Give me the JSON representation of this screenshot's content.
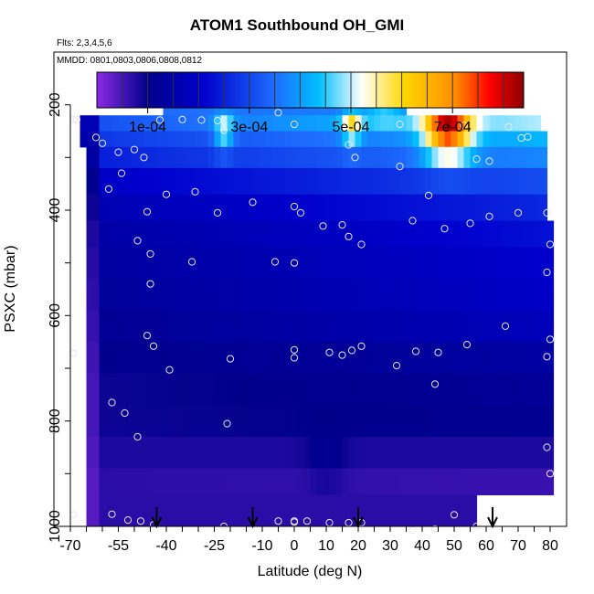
{
  "chart_data": {
    "type": "heatmap",
    "title": "ATOM1 Southbound OH_GMI",
    "flights_note": "Flts: 2,3,4,5,6",
    "dates_note": "MMDD: 0801,0803,0806,0808,0812",
    "xlabel": "Latitude (deg N)",
    "ylabel": "PSXC (mbar)",
    "xlim": [
      -70,
      80
    ],
    "ylim": [
      1000,
      100
    ],
    "x_ticks": [
      -70,
      -55,
      -40,
      -25,
      -10,
      0,
      10,
      20,
      30,
      40,
      50,
      60,
      70,
      80
    ],
    "x_minor_step": 5,
    "y_ticks": [
      200,
      400,
      600,
      800,
      1000
    ],
    "y_minor_step": 100,
    "colorbar": {
      "range": [
        0,
        0.00084
      ],
      "tick_values": [
        0.0001,
        0.0003,
        0.0005,
        0.0007
      ],
      "tick_labels": [
        "1e-04",
        "3e-04",
        "5e-04",
        "7e-04"
      ],
      "divider_step": 5e-05,
      "palette": [
        "#8a2be2",
        "#00008b",
        "#0000cd",
        "#1e6fff",
        "#00bfff",
        "#ffffff",
        "#ffd700",
        "#ff8c00",
        "#ff0000",
        "#8b0000"
      ],
      "palette_stops": [
        0.0,
        0.12,
        0.25,
        0.42,
        0.52,
        0.62,
        0.72,
        0.84,
        0.92,
        1.0
      ]
    },
    "layers": [
      {
        "p_top": 180,
        "p_bot": 220,
        "lat_min": -41,
        "lat_max": 34,
        "base": 0.00034,
        "trend": 5e-05
      },
      {
        "p_top": 220,
        "p_bot": 250,
        "lat_min": -67,
        "lat_max": 77,
        "base": 0.0003,
        "trend": 0.0002
      },
      {
        "p_top": 250,
        "p_bot": 280,
        "lat_min": -67,
        "lat_max": 78,
        "base": 0.00027,
        "trend": 0.00016
      },
      {
        "p_top": 280,
        "p_bot": 320,
        "lat_min": -65,
        "lat_max": 78,
        "base": 0.00024,
        "trend": 0.00014
      },
      {
        "p_top": 320,
        "p_bot": 370,
        "lat_min": -65,
        "lat_max": 79,
        "base": 0.00019,
        "trend": 0.00012
      },
      {
        "p_top": 370,
        "p_bot": 420,
        "lat_min": -65,
        "lat_max": 79,
        "base": 0.00016,
        "trend": 0.0001
      },
      {
        "p_top": 420,
        "p_bot": 470,
        "lat_min": -65,
        "lat_max": 80,
        "base": 0.00014,
        "trend": 9e-05
      },
      {
        "p_top": 470,
        "p_bot": 530,
        "lat_min": -65,
        "lat_max": 80,
        "base": 0.00013,
        "trend": 8e-05
      },
      {
        "p_top": 530,
        "p_bot": 590,
        "lat_min": -65,
        "lat_max": 80,
        "base": 0.00012,
        "trend": 8e-05
      },
      {
        "p_top": 590,
        "p_bot": 650,
        "lat_min": -65,
        "lat_max": 80,
        "base": 0.00011,
        "trend": 7e-05
      },
      {
        "p_top": 650,
        "p_bot": 710,
        "lat_min": -65,
        "lat_max": 80,
        "base": 0.0001,
        "trend": 4e-05
      },
      {
        "p_top": 710,
        "p_bot": 770,
        "lat_min": -65,
        "lat_max": 80,
        "base": 9e-05,
        "trend": 3e-05
      },
      {
        "p_top": 770,
        "p_bot": 830,
        "lat_min": -65,
        "lat_max": 80,
        "base": 9e-05,
        "trend": 2e-05
      },
      {
        "p_top": 830,
        "p_bot": 890,
        "lat_min": -65,
        "lat_max": 80,
        "base": 8e-05,
        "trend": 0.0
      },
      {
        "p_top": 890,
        "p_bot": 940,
        "lat_min": -65,
        "lat_max": 80,
        "base": 7e-05,
        "trend": -1e-05
      },
      {
        "p_top": 940,
        "p_bot": 1000,
        "lat_min": -65,
        "lat_max": 56,
        "base": 7e-05,
        "trend": 0.0
      }
    ],
    "bright_spots": [
      {
        "lat": -22,
        "p": 250,
        "amp": 0.00016,
        "w": 3
      },
      {
        "lat": 18,
        "p": 240,
        "amp": 0.00018,
        "w": 3
      },
      {
        "lat": 48,
        "p": 240,
        "amp": 0.00035,
        "w": 7
      },
      {
        "lat": 48,
        "p": 290,
        "amp": 0.00015,
        "w": 8
      },
      {
        "lat": 28,
        "p": 195,
        "amp": 8e-05,
        "w": 6
      },
      {
        "lat": 10,
        "p": 880,
        "amp": 4e-05,
        "w": 6
      }
    ],
    "samples": [
      {
        "lat": -69,
        "p": 228
      },
      {
        "lat": -68,
        "p": 228
      },
      {
        "lat": -62,
        "p": 262
      },
      {
        "lat": -60,
        "p": 273
      },
      {
        "lat": -55,
        "p": 290
      },
      {
        "lat": -54,
        "p": 330
      },
      {
        "lat": -50,
        "p": 285
      },
      {
        "lat": -47,
        "p": 300
      },
      {
        "lat": -46,
        "p": 199
      },
      {
        "lat": -42,
        "p": 229
      },
      {
        "lat": -35,
        "p": 228
      },
      {
        "lat": -29,
        "p": 229
      },
      {
        "lat": -24,
        "p": 230
      },
      {
        "lat": -22,
        "p": 248
      },
      {
        "lat": -5,
        "p": 215
      },
      {
        "lat": 0,
        "p": 237
      },
      {
        "lat": 17,
        "p": 276
      },
      {
        "lat": 19,
        "p": 300
      },
      {
        "lat": 30,
        "p": 180
      },
      {
        "lat": 33,
        "p": 237
      },
      {
        "lat": 33,
        "p": 317
      },
      {
        "lat": 53,
        "p": 239
      },
      {
        "lat": 57,
        "p": 303
      },
      {
        "lat": 61,
        "p": 307
      },
      {
        "lat": 67,
        "p": 242
      },
      {
        "lat": 71,
        "p": 263
      },
      {
        "lat": 73,
        "p": 261
      },
      {
        "lat": -58,
        "p": 360
      },
      {
        "lat": -46,
        "p": 403
      },
      {
        "lat": -40,
        "p": 370
      },
      {
        "lat": -31,
        "p": 365
      },
      {
        "lat": -13,
        "p": 385
      },
      {
        "lat": -24,
        "p": 405
      },
      {
        "lat": 0,
        "p": 393
      },
      {
        "lat": 2,
        "p": 405
      },
      {
        "lat": 9,
        "p": 430
      },
      {
        "lat": 15,
        "p": 428
      },
      {
        "lat": 17,
        "p": 450
      },
      {
        "lat": 21,
        "p": 465
      },
      {
        "lat": 37,
        "p": 420
      },
      {
        "lat": 42,
        "p": 372
      },
      {
        "lat": 47,
        "p": 435
      },
      {
        "lat": 55,
        "p": 425
      },
      {
        "lat": 61,
        "p": 412
      },
      {
        "lat": 70,
        "p": 405
      },
      {
        "lat": 79,
        "p": 405
      },
      {
        "lat": 80,
        "p": 465
      },
      {
        "lat": -49,
        "p": 458
      },
      {
        "lat": -45,
        "p": 483
      },
      {
        "lat": -45,
        "p": 540
      },
      {
        "lat": -32,
        "p": 498
      },
      {
        "lat": -6,
        "p": 498
      },
      {
        "lat": 0,
        "p": 500
      },
      {
        "lat": 79,
        "p": 518
      },
      {
        "lat": -46,
        "p": 638
      },
      {
        "lat": -44,
        "p": 658
      },
      {
        "lat": -39,
        "p": 703
      },
      {
        "lat": -20,
        "p": 682
      },
      {
        "lat": 0,
        "p": 665
      },
      {
        "lat": 0,
        "p": 680
      },
      {
        "lat": 11,
        "p": 670
      },
      {
        "lat": 15,
        "p": 675
      },
      {
        "lat": 18,
        "p": 666
      },
      {
        "lat": 21,
        "p": 658
      },
      {
        "lat": 32,
        "p": 695
      },
      {
        "lat": 38,
        "p": 668
      },
      {
        "lat": 45,
        "p": 670
      },
      {
        "lat": 54,
        "p": 655
      },
      {
        "lat": 66,
        "p": 620
      },
      {
        "lat": 80,
        "p": 645
      },
      {
        "lat": 79,
        "p": 678
      },
      {
        "lat": -69,
        "p": 672
      },
      {
        "lat": -57,
        "p": 765
      },
      {
        "lat": -53,
        "p": 785
      },
      {
        "lat": -49,
        "p": 830
      },
      {
        "lat": -21,
        "p": 805
      },
      {
        "lat": 44,
        "p": 730
      },
      {
        "lat": 79,
        "p": 850
      },
      {
        "lat": 80,
        "p": 900
      },
      {
        "lat": -69,
        "p": 978
      },
      {
        "lat": -57,
        "p": 977
      },
      {
        "lat": -52,
        "p": 988
      },
      {
        "lat": -48,
        "p": 990
      },
      {
        "lat": -44,
        "p": 997
      },
      {
        "lat": -22,
        "p": 1000
      },
      {
        "lat": -5,
        "p": 990
      },
      {
        "lat": 0,
        "p": 990
      },
      {
        "lat": 0,
        "p": 992
      },
      {
        "lat": 4,
        "p": 990
      },
      {
        "lat": 11,
        "p": 993
      },
      {
        "lat": 17,
        "p": 993
      },
      {
        "lat": 21,
        "p": 993
      },
      {
        "lat": 37,
        "p": 1007
      },
      {
        "lat": 44,
        "p": 1005
      },
      {
        "lat": 50,
        "p": 978
      },
      {
        "lat": 57,
        "p": 1000
      }
    ],
    "arrows": [
      {
        "lat": -43
      },
      {
        "lat": -13
      },
      {
        "lat": 20
      },
      {
        "lat": 62
      }
    ]
  }
}
